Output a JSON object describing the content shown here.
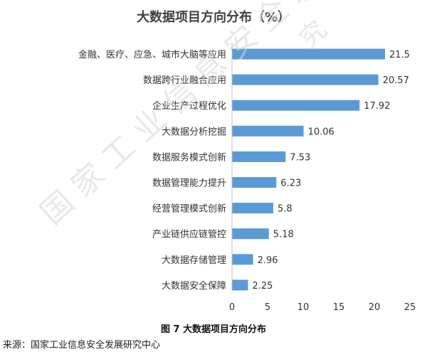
{
  "chart_data": {
    "type": "bar",
    "orientation": "horizontal",
    "title": "大数据项目方向分布（%）",
    "categories": [
      "金融、医疗、应急、城市大脑等应用",
      "数据跨行业融合应用",
      "企业生产过程优化",
      "大数据分析挖掘",
      "数据服务模式创新",
      "数据管理能力提升",
      "经营管理模式创新",
      "产业链供应链管控",
      "大数据存储管理",
      "大数据安全保障"
    ],
    "values": [
      21.5,
      20.57,
      17.92,
      10.06,
      7.53,
      6.23,
      5.8,
      5.18,
      2.96,
      2.25
    ],
    "value_labels": [
      "21.5",
      "20.57",
      "17.92",
      "10.06",
      "7.53",
      "6.23",
      "5.8",
      "5.18",
      "2.96",
      "2.25"
    ],
    "xlim": [
      0,
      25
    ],
    "xticks": [
      "0",
      "5",
      "10",
      "15",
      "20",
      "25"
    ],
    "bar_color": "#5b9bd5",
    "grid": false
  },
  "caption": "图  7 大数据项目方向分布",
  "source": "来源：国家工业信息安全发展研究中心",
  "watermark": "国家工业信息安全发展研究"
}
